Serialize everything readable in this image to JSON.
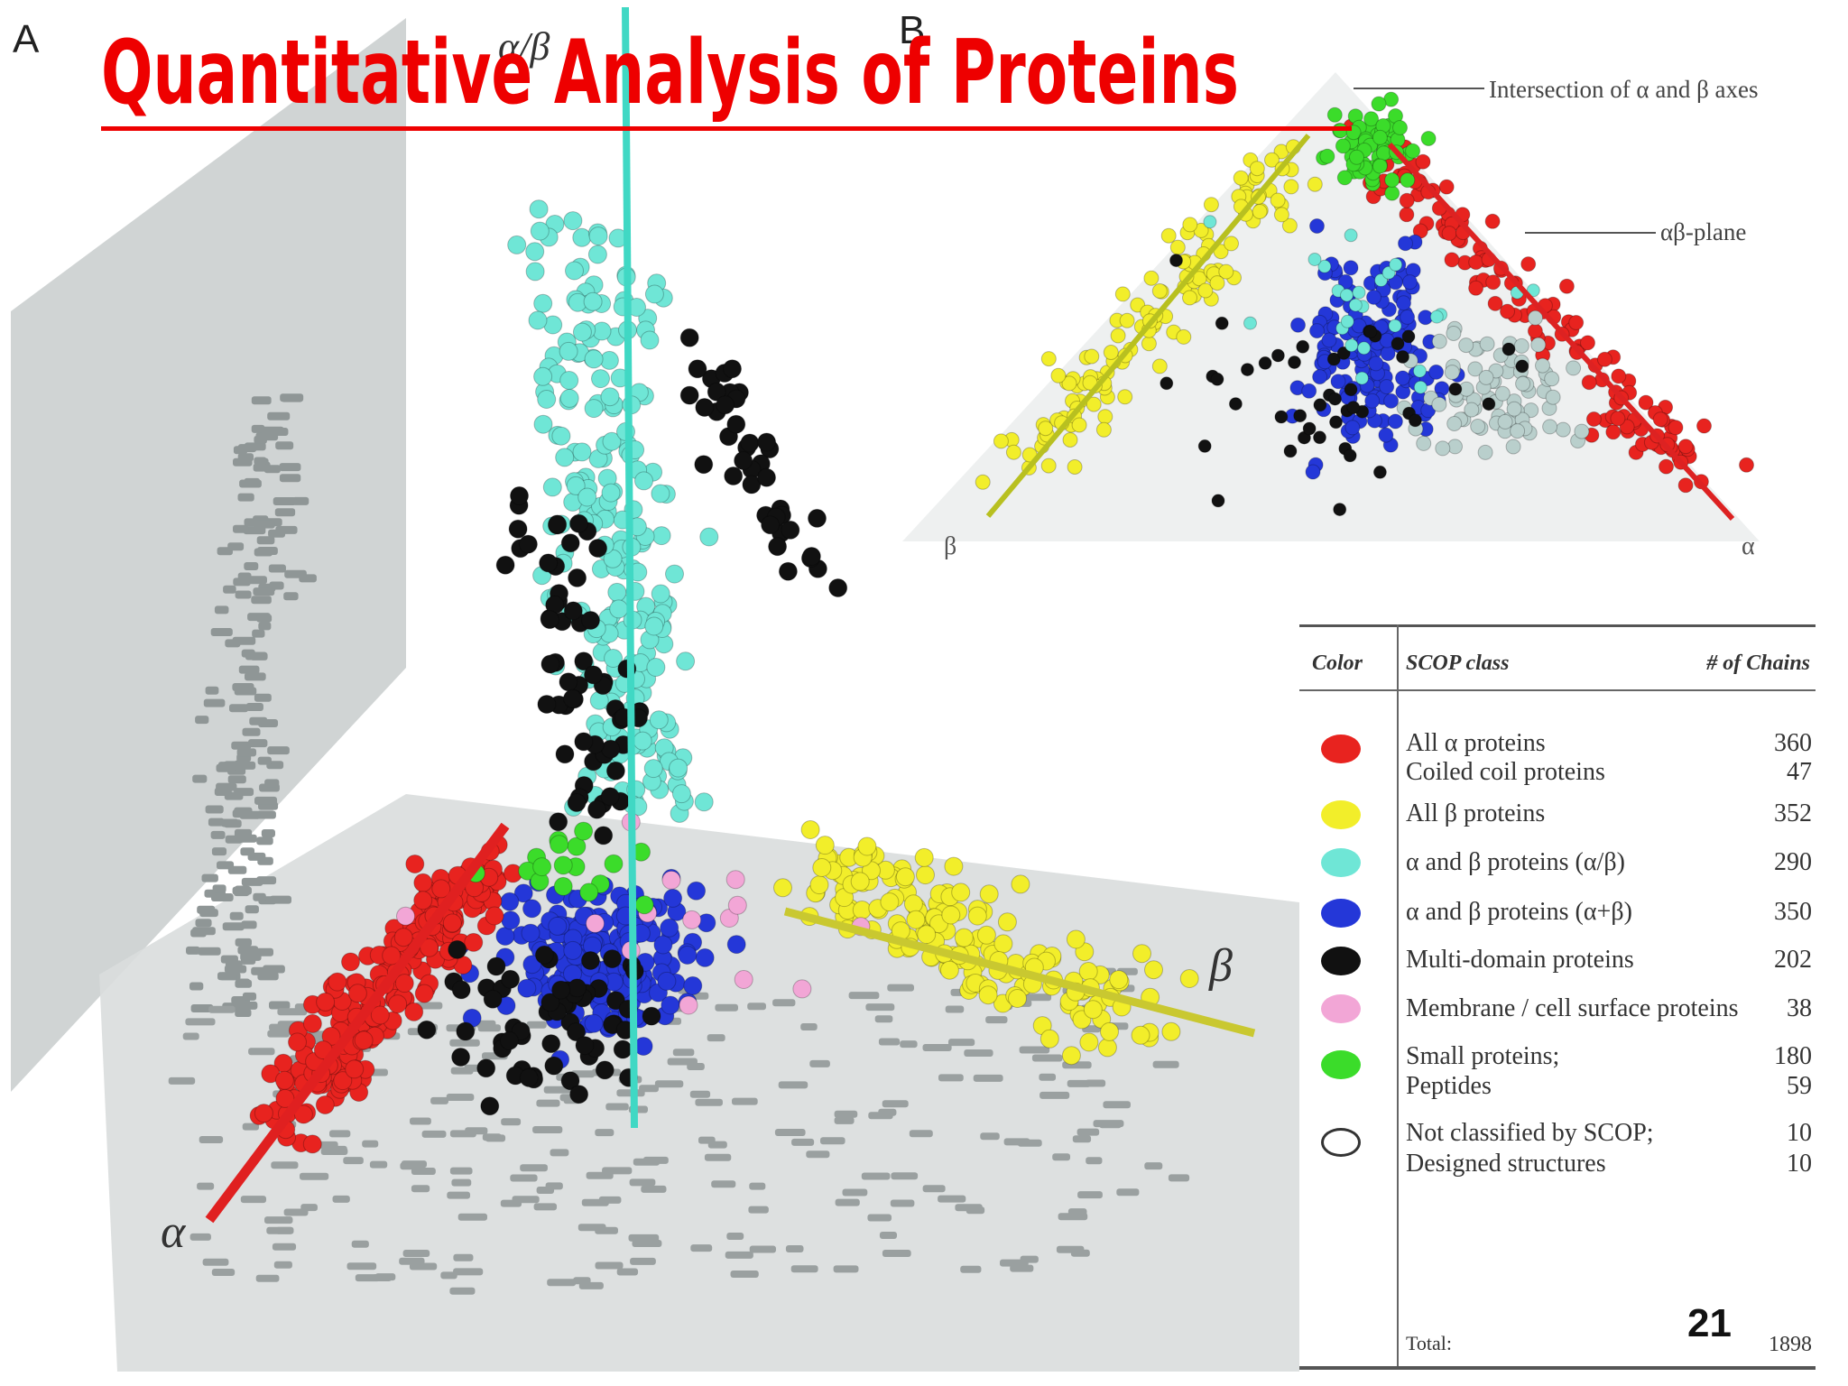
{
  "title": "Quantitative Analysis of Proteins",
  "page_number": "21",
  "panels": {
    "a": {
      "label": "A",
      "axis_top": "α/β",
      "axis_left": "α",
      "axis_right": "β"
    },
    "b": {
      "label": "B",
      "callout_intersection": "Intersection of α and β axes",
      "callout_plane": "αβ-plane",
      "axis_left": "β",
      "axis_right": "α"
    }
  },
  "legend": {
    "headers": {
      "color": "Color",
      "class": "SCOP class",
      "count": "# of Chains"
    },
    "rows": [
      {
        "color": "#e8231f",
        "hollow": false,
        "items": [
          {
            "label": "All α proteins",
            "count": "360"
          },
          {
            "label": "Coiled coil proteins",
            "count": "47"
          }
        ]
      },
      {
        "color": "#f2ee2a",
        "hollow": false,
        "items": [
          {
            "label": "All β proteins",
            "count": "352"
          }
        ]
      },
      {
        "color": "#6fe6d6",
        "hollow": false,
        "items": [
          {
            "label": "α and β proteins (α/β)",
            "count": "290"
          }
        ]
      },
      {
        "color": "#2437d8",
        "hollow": false,
        "items": [
          {
            "label": "α and β proteins (α+β)",
            "count": "350"
          }
        ]
      },
      {
        "color": "#111111",
        "hollow": false,
        "items": [
          {
            "label": "Multi-domain proteins",
            "count": "202"
          }
        ]
      },
      {
        "color": "#f2a6d6",
        "hollow": false,
        "items": [
          {
            "label": "Membrane / cell surface proteins",
            "count": "38"
          }
        ]
      },
      {
        "color": "#3bdc2a",
        "hollow": false,
        "items": [
          {
            "label": "Small proteins;",
            "count": "180"
          },
          {
            "label": "Peptides",
            "count": "59"
          }
        ]
      },
      {
        "color": "#ffffff",
        "hollow": true,
        "items": [
          {
            "label": "Not classified by SCOP;",
            "count": "10"
          },
          {
            "label": "Designed structures",
            "count": "10"
          }
        ]
      }
    ],
    "total_label": "Total:",
    "total_count": "1898"
  },
  "colors": {
    "alpha": "#e8231f",
    "beta": "#f2ee2a",
    "alpha_beta_slash": "#6fe6d6",
    "alpha_plus_beta": "#2437d8",
    "multi_domain": "#111111",
    "membrane": "#f2a6d6",
    "small": "#3bdc2a",
    "title": "#ee0000"
  }
}
